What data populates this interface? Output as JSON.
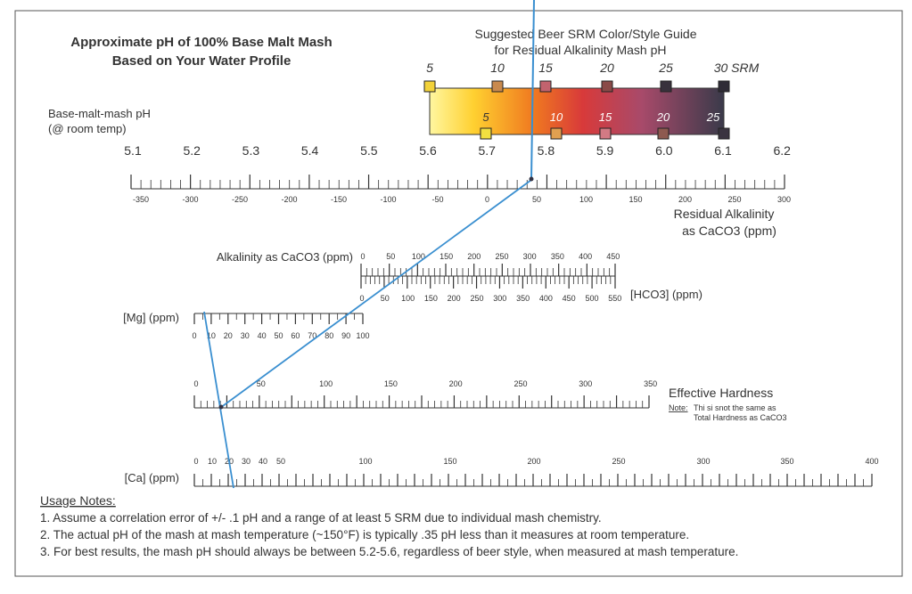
{
  "title": {
    "line1": "Approximate pH of 100% Base Malt Mash",
    "line2": "Based on Your Water Profile"
  },
  "srm_guide": {
    "title_line1": "Suggested Beer SRM Color/Style Guide",
    "title_line2": "for Residual Alkalinity Mash pH",
    "top_labels": [
      "5",
      "10",
      "15",
      "20",
      "25",
      "30 SRM"
    ],
    "inner_labels": [
      "5",
      "10",
      "15",
      "20",
      "25"
    ],
    "top_swatch_colors": [
      "#f2d23a",
      "#c98a4e",
      "#c2636e",
      "#8a4a48",
      "#38323c",
      "#2f2c36"
    ],
    "bottom_swatch_colors": [
      "#f2e040",
      "#e0a050",
      "#d27a84",
      "#8e5a50",
      "#3a3440"
    ],
    "gradient_colors": [
      "#fff7a0",
      "#ffd030",
      "#f07a20",
      "#d83a3a",
      "#a84a6a",
      "#3a3a4a"
    ]
  },
  "ph_scale": {
    "label_line1": "Base-malt-mash pH",
    "label_line2": "(@ room temp)",
    "ticks": [
      "5.1",
      "5.2",
      "5.3",
      "5.4",
      "5.5",
      "5.6",
      "5.7",
      "5.8",
      "5.9",
      "6.0",
      "6.1",
      "6.2"
    ]
  },
  "ra_scale": {
    "ticks": [
      "-350",
      "-300",
      "-250",
      "-200",
      "-150",
      "-100",
      "-50",
      "0",
      "50",
      "100",
      "150",
      "200",
      "250",
      "300"
    ],
    "label_line1": "Residual Alkalinity",
    "label_line2": "as CaCO3 (ppm)"
  },
  "alkalinity_scale": {
    "label": "Alkalinity as CaCO3 (ppm)",
    "ticks": [
      "0",
      "50",
      "100",
      "150",
      "200",
      "250",
      "300",
      "350",
      "400",
      "450"
    ]
  },
  "hco3_scale": {
    "label": "[HCO3] (ppm)",
    "ticks": [
      "0",
      "50",
      "100",
      "150",
      "200",
      "250",
      "300",
      "350",
      "400",
      "450",
      "500",
      "550"
    ]
  },
  "mg_scale": {
    "label": "[Mg] (ppm)",
    "ticks": [
      "0",
      "10",
      "20",
      "30",
      "40",
      "50",
      "60",
      "70",
      "80",
      "90",
      "100"
    ]
  },
  "eh_scale": {
    "ticks": [
      "0",
      "50",
      "100",
      "150",
      "200",
      "250",
      "300",
      "350"
    ],
    "label": "Effective Hardness",
    "note_label": "Note:",
    "note_line1": "Thi si snot the same as",
    "note_line2": "Total Hardness as CaCO3"
  },
  "ca_scale": {
    "label": "[Ca] (ppm)",
    "ticks": [
      "0",
      "10",
      "20",
      "30",
      "40",
      "50",
      "100",
      "150",
      "200",
      "250",
      "300",
      "350",
      "400"
    ]
  },
  "usage_notes": {
    "heading": "Usage Notes:",
    "lines": [
      "1. Assume a correlation error of +/- .1 pH and a range of at least 5 SRM due to individual mash chemistry.",
      "2. The actual pH of the mash at mash temperature (~150°F) is typically .35 pH less than it measures at room temperature.",
      "3. For best results, the mash pH should always be between 5.2-5.6, regardless of beer style, when measured at mash temperature."
    ]
  },
  "line_color": "#3a8fd0"
}
